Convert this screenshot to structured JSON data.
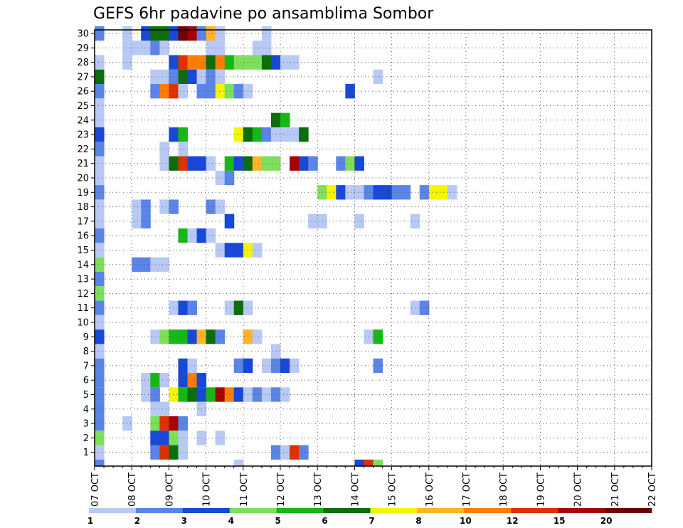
{
  "chart_data": {
    "type": "heatmap",
    "title": "GEFS 6hr padavine po ansamblima Sombor",
    "xlabel": "",
    "ylabel": "",
    "x_ticks": [
      "07 OCT",
      "08 OCT",
      "09 OCT",
      "10 OCT",
      "11 OCT",
      "12 OCT",
      "13 OCT",
      "14 OCT",
      "15 OCT",
      "16 OCT",
      "17 OCT",
      "18 OCT",
      "19 OCT",
      "20 OCT",
      "21 OCT",
      "22 OCT"
    ],
    "y_ticks": [
      1,
      2,
      3,
      4,
      5,
      6,
      7,
      8,
      9,
      10,
      11,
      12,
      13,
      14,
      15,
      16,
      17,
      18,
      19,
      20,
      21,
      22,
      23,
      24,
      25,
      26,
      27,
      28,
      29,
      30
    ],
    "x_step_hours": 6,
    "color_levels": [
      1,
      2,
      3,
      4,
      5,
      6,
      7,
      8,
      10,
      12,
      15,
      20
    ],
    "color_bins": [
      "#b8c9f5",
      "#5b84e8",
      "#1848d8",
      "#7ee05a",
      "#16b814",
      "#0b6e0b",
      "#f5f500",
      "#ffb428",
      "#ff7d00",
      "#e03000",
      "#a80000",
      "#700000"
    ],
    "grid": true,
    "legend": "bottom colorbar",
    "cells": [
      [
        0,
        30,
        1
      ],
      [
        3,
        30,
        0
      ],
      [
        5,
        30,
        2
      ],
      [
        6,
        30,
        5
      ],
      [
        7,
        30,
        5
      ],
      [
        8,
        30,
        2
      ],
      [
        9,
        30,
        11
      ],
      [
        10,
        30,
        10
      ],
      [
        11,
        30,
        1
      ],
      [
        12,
        30,
        7
      ],
      [
        13,
        30,
        0
      ],
      [
        18,
        30,
        0
      ],
      [
        3,
        29,
        0
      ],
      [
        4,
        29,
        0
      ],
      [
        5,
        29,
        0
      ],
      [
        6,
        29,
        1
      ],
      [
        7,
        29,
        0
      ],
      [
        12,
        29,
        0
      ],
      [
        13,
        29,
        0
      ],
      [
        17,
        29,
        0
      ],
      [
        18,
        29,
        0
      ],
      [
        0,
        28,
        0
      ],
      [
        3,
        28,
        0
      ],
      [
        8,
        28,
        2
      ],
      [
        9,
        28,
        9
      ],
      [
        10,
        28,
        8
      ],
      [
        11,
        28,
        8
      ],
      [
        12,
        28,
        5
      ],
      [
        13,
        28,
        8
      ],
      [
        14,
        28,
        4
      ],
      [
        15,
        28,
        3
      ],
      [
        16,
        28,
        3
      ],
      [
        17,
        28,
        3
      ],
      [
        18,
        28,
        5
      ],
      [
        19,
        28,
        2
      ],
      [
        20,
        28,
        0
      ],
      [
        21,
        28,
        0
      ],
      [
        0,
        27,
        5
      ],
      [
        6,
        27,
        0
      ],
      [
        7,
        27,
        0
      ],
      [
        8,
        27,
        1
      ],
      [
        9,
        27,
        5
      ],
      [
        10,
        27,
        2
      ],
      [
        11,
        27,
        0
      ],
      [
        12,
        27,
        1
      ],
      [
        13,
        27,
        0
      ],
      [
        30,
        27,
        0
      ],
      [
        0,
        26,
        1
      ],
      [
        6,
        26,
        1
      ],
      [
        7,
        26,
        8
      ],
      [
        8,
        26,
        9
      ],
      [
        9,
        26,
        0
      ],
      [
        11,
        26,
        1
      ],
      [
        12,
        26,
        1
      ],
      [
        13,
        26,
        6
      ],
      [
        14,
        26,
        3
      ],
      [
        15,
        26,
        1
      ],
      [
        16,
        26,
        0
      ],
      [
        27,
        26,
        2
      ],
      [
        0,
        25,
        0
      ],
      [
        0,
        24,
        0
      ],
      [
        19,
        24,
        5
      ],
      [
        20,
        24,
        4
      ],
      [
        0,
        23,
        2
      ],
      [
        8,
        23,
        2
      ],
      [
        9,
        23,
        4
      ],
      [
        15,
        23,
        6
      ],
      [
        16,
        23,
        5
      ],
      [
        17,
        23,
        4
      ],
      [
        18,
        23,
        1
      ],
      [
        19,
        23,
        0
      ],
      [
        20,
        23,
        0
      ],
      [
        21,
        23,
        0
      ],
      [
        22,
        23,
        5
      ],
      [
        0,
        22,
        1
      ],
      [
        7,
        22,
        0
      ],
      [
        9,
        22,
        0
      ],
      [
        0,
        21,
        0
      ],
      [
        7,
        21,
        0
      ],
      [
        8,
        21,
        5
      ],
      [
        9,
        21,
        9
      ],
      [
        10,
        21,
        2
      ],
      [
        11,
        21,
        2
      ],
      [
        12,
        21,
        0
      ],
      [
        14,
        21,
        4
      ],
      [
        15,
        21,
        2
      ],
      [
        16,
        21,
        5
      ],
      [
        17,
        21,
        7
      ],
      [
        18,
        21,
        3
      ],
      [
        19,
        21,
        3
      ],
      [
        21,
        21,
        10
      ],
      [
        22,
        21,
        2
      ],
      [
        23,
        21,
        1
      ],
      [
        26,
        21,
        1
      ],
      [
        27,
        21,
        3
      ],
      [
        28,
        21,
        2
      ],
      [
        0,
        20,
        0
      ],
      [
        13,
        20,
        0
      ],
      [
        14,
        20,
        1
      ],
      [
        0,
        19,
        1
      ],
      [
        24,
        19,
        3
      ],
      [
        25,
        19,
        6
      ],
      [
        26,
        19,
        2
      ],
      [
        27,
        19,
        0
      ],
      [
        28,
        19,
        0
      ],
      [
        29,
        19,
        1
      ],
      [
        30,
        19,
        2
      ],
      [
        31,
        19,
        2
      ],
      [
        32,
        19,
        1
      ],
      [
        33,
        19,
        1
      ],
      [
        35,
        19,
        1
      ],
      [
        36,
        19,
        6
      ],
      [
        37,
        19,
        6
      ],
      [
        38,
        19,
        0
      ],
      [
        0,
        18,
        0
      ],
      [
        4,
        18,
        0
      ],
      [
        5,
        18,
        1
      ],
      [
        7,
        18,
        0
      ],
      [
        8,
        18,
        1
      ],
      [
        12,
        18,
        1
      ],
      [
        13,
        18,
        0
      ],
      [
        0,
        17,
        0
      ],
      [
        4,
        17,
        0
      ],
      [
        5,
        17,
        1
      ],
      [
        14,
        17,
        2
      ],
      [
        23,
        17,
        0
      ],
      [
        24,
        17,
        0
      ],
      [
        28,
        17,
        0
      ],
      [
        34,
        17,
        0
      ],
      [
        0,
        16,
        1
      ],
      [
        9,
        16,
        4
      ],
      [
        10,
        16,
        0
      ],
      [
        11,
        16,
        2
      ],
      [
        12,
        16,
        0
      ],
      [
        0,
        15,
        0
      ],
      [
        13,
        15,
        0
      ],
      [
        14,
        15,
        2
      ],
      [
        15,
        15,
        2
      ],
      [
        16,
        15,
        6
      ],
      [
        17,
        15,
        0
      ],
      [
        0,
        14,
        3
      ],
      [
        4,
        14,
        1
      ],
      [
        5,
        14,
        1
      ],
      [
        6,
        14,
        0
      ],
      [
        7,
        14,
        0
      ],
      [
        0,
        13,
        1
      ],
      [
        0,
        12,
        3
      ],
      [
        0,
        11,
        1
      ],
      [
        8,
        11,
        0
      ],
      [
        9,
        11,
        2
      ],
      [
        10,
        11,
        1
      ],
      [
        14,
        11,
        0
      ],
      [
        15,
        11,
        5
      ],
      [
        16,
        11,
        0
      ],
      [
        34,
        11,
        0
      ],
      [
        35,
        11,
        1
      ],
      [
        0,
        10,
        0
      ],
      [
        0,
        9,
        2
      ],
      [
        6,
        9,
        0
      ],
      [
        7,
        9,
        3
      ],
      [
        8,
        9,
        4
      ],
      [
        9,
        9,
        4
      ],
      [
        10,
        9,
        2
      ],
      [
        11,
        9,
        7
      ],
      [
        12,
        9,
        5
      ],
      [
        13,
        9,
        1
      ],
      [
        16,
        9,
        7
      ],
      [
        17,
        9,
        0
      ],
      [
        29,
        9,
        0
      ],
      [
        30,
        9,
        4
      ],
      [
        0,
        8,
        0
      ],
      [
        19,
        8,
        0
      ],
      [
        0,
        7,
        1
      ],
      [
        9,
        7,
        2
      ],
      [
        10,
        7,
        0
      ],
      [
        15,
        7,
        1
      ],
      [
        16,
        7,
        2
      ],
      [
        18,
        7,
        0
      ],
      [
        19,
        7,
        1
      ],
      [
        20,
        7,
        2
      ],
      [
        21,
        7,
        0
      ],
      [
        30,
        7,
        1
      ],
      [
        0,
        6,
        1
      ],
      [
        5,
        6,
        0
      ],
      [
        6,
        6,
        4
      ],
      [
        7,
        6,
        0
      ],
      [
        9,
        6,
        2
      ],
      [
        10,
        6,
        8
      ],
      [
        11,
        6,
        2
      ],
      [
        0,
        5,
        1
      ],
      [
        5,
        5,
        0
      ],
      [
        6,
        5,
        1
      ],
      [
        8,
        5,
        6
      ],
      [
        9,
        5,
        4
      ],
      [
        10,
        5,
        5
      ],
      [
        11,
        5,
        2
      ],
      [
        12,
        5,
        4
      ],
      [
        13,
        5,
        10
      ],
      [
        14,
        5,
        8
      ],
      [
        15,
        5,
        2
      ],
      [
        16,
        5,
        0
      ],
      [
        17,
        5,
        1
      ],
      [
        18,
        5,
        0
      ],
      [
        19,
        5,
        1
      ],
      [
        20,
        5,
        0
      ],
      [
        0,
        4,
        1
      ],
      [
        6,
        4,
        0
      ],
      [
        7,
        4,
        0
      ],
      [
        11,
        4,
        0
      ],
      [
        0,
        3,
        1
      ],
      [
        3,
        3,
        0
      ],
      [
        6,
        3,
        3
      ],
      [
        7,
        3,
        9
      ],
      [
        8,
        3,
        10
      ],
      [
        9,
        3,
        1
      ],
      [
        0,
        2,
        3
      ],
      [
        6,
        2,
        2
      ],
      [
        7,
        2,
        2
      ],
      [
        8,
        2,
        3
      ],
      [
        9,
        2,
        0
      ],
      [
        11,
        2,
        0
      ],
      [
        13,
        2,
        0
      ],
      [
        0,
        1,
        0
      ],
      [
        6,
        1,
        1
      ],
      [
        7,
        1,
        9
      ],
      [
        8,
        1,
        5
      ],
      [
        9,
        1,
        0
      ],
      [
        19,
        1,
        1
      ],
      [
        20,
        1,
        0
      ],
      [
        21,
        1,
        9
      ],
      [
        22,
        1,
        1
      ],
      [
        0,
        0,
        1
      ],
      [
        15,
        0,
        0
      ],
      [
        28,
        0,
        2
      ],
      [
        29,
        0,
        9
      ],
      [
        30,
        0,
        3
      ]
    ]
  }
}
